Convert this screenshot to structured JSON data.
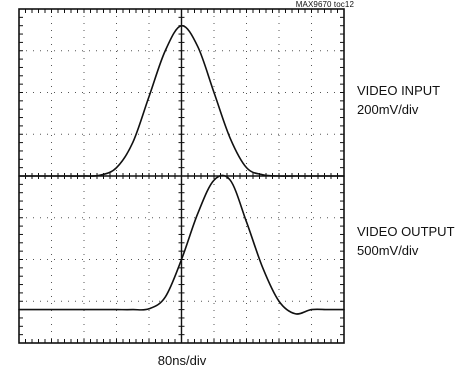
{
  "figure_id": "MAX9670 toc12",
  "chart_data": {
    "type": "line",
    "grid": true,
    "x_divisions": 10,
    "y_divisions": 8,
    "timebase": "80ns/div",
    "x_unit_per_div": 80,
    "x_unit": "ns",
    "x": [
      0,
      40,
      80,
      120,
      160,
      200,
      240,
      280,
      320,
      360,
      400,
      440,
      480,
      520,
      560,
      600,
      640,
      680,
      720,
      760,
      800
    ],
    "series": [
      {
        "name": "VIDEO INPUT",
        "scale": "200mV/div",
        "color": "#111111",
        "baseline_div": 4,
        "y_div": [
          4.0,
          4.0,
          4.0,
          4.0,
          4.0,
          4.02,
          4.2,
          4.8,
          5.9,
          7.0,
          7.6,
          7.1,
          6.0,
          4.9,
          4.2,
          4.03,
          4.0,
          4.0,
          4.0,
          4.0,
          4.0
        ]
      },
      {
        "name": "VIDEO OUTPUT",
        "scale": "500mV/div",
        "color": "#111111",
        "baseline_div": 0.8,
        "y_div": [
          0.8,
          0.8,
          0.8,
          0.8,
          0.8,
          0.8,
          0.8,
          0.8,
          0.82,
          1.1,
          2.0,
          3.1,
          3.9,
          3.9,
          2.9,
          1.8,
          1.0,
          0.7,
          0.8,
          0.8,
          0.8
        ]
      }
    ]
  },
  "labels": {
    "ch1_name": "VIDEO INPUT",
    "ch1_scale": "200mV/div",
    "ch2_name": "VIDEO OUTPUT",
    "ch2_scale": "500mV/div",
    "time_scale": "80ns/div"
  }
}
